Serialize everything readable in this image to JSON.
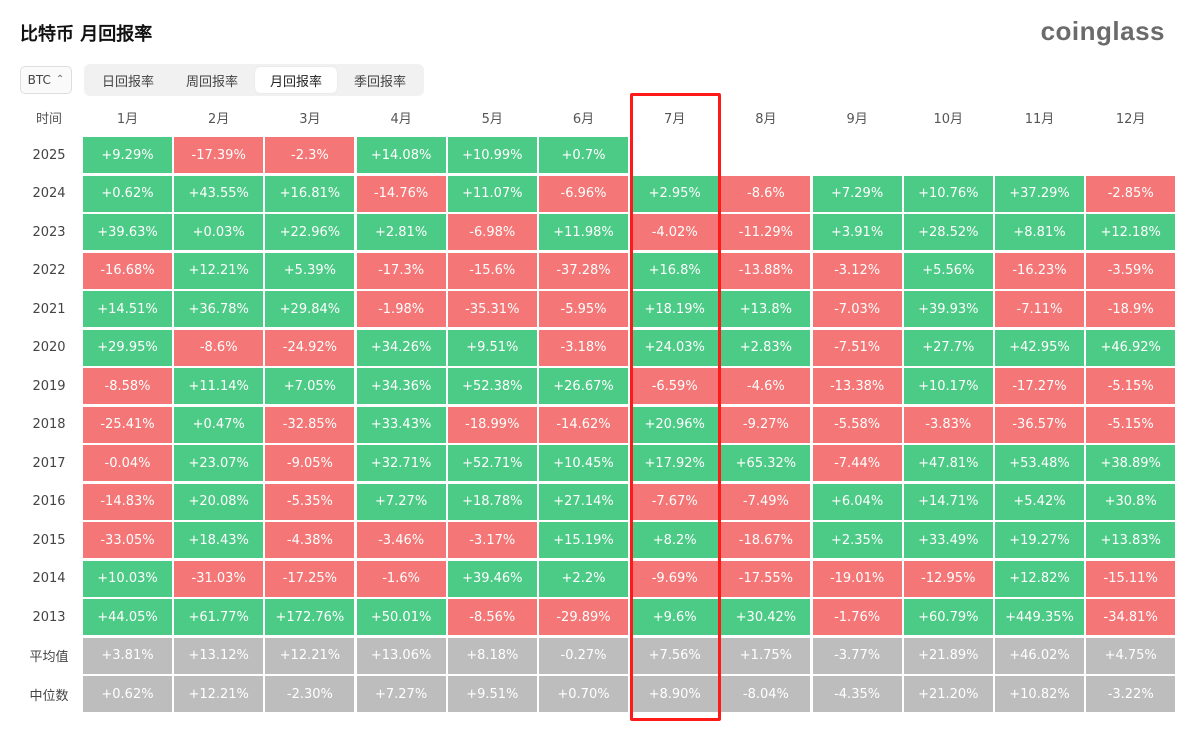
{
  "title": "比特币 月回报率",
  "logo": "coinglass",
  "asset_select": {
    "value": "BTC"
  },
  "tabs": [
    {
      "label": "日回报率",
      "active": false
    },
    {
      "label": "周回报率",
      "active": false
    },
    {
      "label": "月回报率",
      "active": true
    },
    {
      "label": "季回报率",
      "active": false
    }
  ],
  "colors": {
    "positive": "#4ccb86",
    "negative": "#f47676",
    "summary": "#bdbdbd",
    "highlight": "#ff1a1a"
  },
  "table": {
    "corner_label": "时间",
    "months": [
      "1月",
      "2月",
      "3月",
      "4月",
      "5月",
      "6月",
      "7月",
      "8月",
      "9月",
      "10月",
      "11月",
      "12月"
    ],
    "highlight_month_index": 6,
    "rows": [
      {
        "label": "2025",
        "values": [
          "+9.29%",
          "-17.39%",
          "-2.3%",
          "+14.08%",
          "+10.99%",
          "+0.7%",
          "",
          "",
          "",
          "",
          "",
          ""
        ]
      },
      {
        "label": "2024",
        "values": [
          "+0.62%",
          "+43.55%",
          "+16.81%",
          "-14.76%",
          "+11.07%",
          "-6.96%",
          "+2.95%",
          "-8.6%",
          "+7.29%",
          "+10.76%",
          "+37.29%",
          "-2.85%"
        ]
      },
      {
        "label": "2023",
        "values": [
          "+39.63%",
          "+0.03%",
          "+22.96%",
          "+2.81%",
          "-6.98%",
          "+11.98%",
          "-4.02%",
          "-11.29%",
          "+3.91%",
          "+28.52%",
          "+8.81%",
          "+12.18%"
        ]
      },
      {
        "label": "2022",
        "values": [
          "-16.68%",
          "+12.21%",
          "+5.39%",
          "-17.3%",
          "-15.6%",
          "-37.28%",
          "+16.8%",
          "-13.88%",
          "-3.12%",
          "+5.56%",
          "-16.23%",
          "-3.59%"
        ]
      },
      {
        "label": "2021",
        "values": [
          "+14.51%",
          "+36.78%",
          "+29.84%",
          "-1.98%",
          "-35.31%",
          "-5.95%",
          "+18.19%",
          "+13.8%",
          "-7.03%",
          "+39.93%",
          "-7.11%",
          "-18.9%"
        ]
      },
      {
        "label": "2020",
        "values": [
          "+29.95%",
          "-8.6%",
          "-24.92%",
          "+34.26%",
          "+9.51%",
          "-3.18%",
          "+24.03%",
          "+2.83%",
          "-7.51%",
          "+27.7%",
          "+42.95%",
          "+46.92%"
        ]
      },
      {
        "label": "2019",
        "values": [
          "-8.58%",
          "+11.14%",
          "+7.05%",
          "+34.36%",
          "+52.38%",
          "+26.67%",
          "-6.59%",
          "-4.6%",
          "-13.38%",
          "+10.17%",
          "-17.27%",
          "-5.15%"
        ]
      },
      {
        "label": "2018",
        "values": [
          "-25.41%",
          "+0.47%",
          "-32.85%",
          "+33.43%",
          "-18.99%",
          "-14.62%",
          "+20.96%",
          "-9.27%",
          "-5.58%",
          "-3.83%",
          "-36.57%",
          "-5.15%"
        ]
      },
      {
        "label": "2017",
        "values": [
          "-0.04%",
          "+23.07%",
          "-9.05%",
          "+32.71%",
          "+52.71%",
          "+10.45%",
          "+17.92%",
          "+65.32%",
          "-7.44%",
          "+47.81%",
          "+53.48%",
          "+38.89%"
        ]
      },
      {
        "label": "2016",
        "values": [
          "-14.83%",
          "+20.08%",
          "-5.35%",
          "+7.27%",
          "+18.78%",
          "+27.14%",
          "-7.67%",
          "-7.49%",
          "+6.04%",
          "+14.71%",
          "+5.42%",
          "+30.8%"
        ]
      },
      {
        "label": "2015",
        "values": [
          "-33.05%",
          "+18.43%",
          "-4.38%",
          "-3.46%",
          "-3.17%",
          "+15.19%",
          "+8.2%",
          "-18.67%",
          "+2.35%",
          "+33.49%",
          "+19.27%",
          "+13.83%"
        ]
      },
      {
        "label": "2014",
        "values": [
          "+10.03%",
          "-31.03%",
          "-17.25%",
          "-1.6%",
          "+39.46%",
          "+2.2%",
          "-9.69%",
          "-17.55%",
          "-19.01%",
          "-12.95%",
          "+12.82%",
          "-15.11%"
        ]
      },
      {
        "label": "2013",
        "values": [
          "+44.05%",
          "+61.77%",
          "+172.76%",
          "+50.01%",
          "-8.56%",
          "-29.89%",
          "+9.6%",
          "+30.42%",
          "-1.76%",
          "+60.79%",
          "+449.35%",
          "-34.81%"
        ]
      }
    ],
    "summary_rows": [
      {
        "label": "平均值",
        "values": [
          "+3.81%",
          "+13.12%",
          "+12.21%",
          "+13.06%",
          "+8.18%",
          "-0.27%",
          "+7.56%",
          "+1.75%",
          "-3.77%",
          "+21.89%",
          "+46.02%",
          "+4.75%"
        ]
      },
      {
        "label": "中位数",
        "values": [
          "+0.62%",
          "+12.21%",
          "-2.30%",
          "+7.27%",
          "+9.51%",
          "+0.70%",
          "+8.90%",
          "-8.04%",
          "-4.35%",
          "+21.20%",
          "+10.82%",
          "-3.22%"
        ]
      }
    ]
  }
}
